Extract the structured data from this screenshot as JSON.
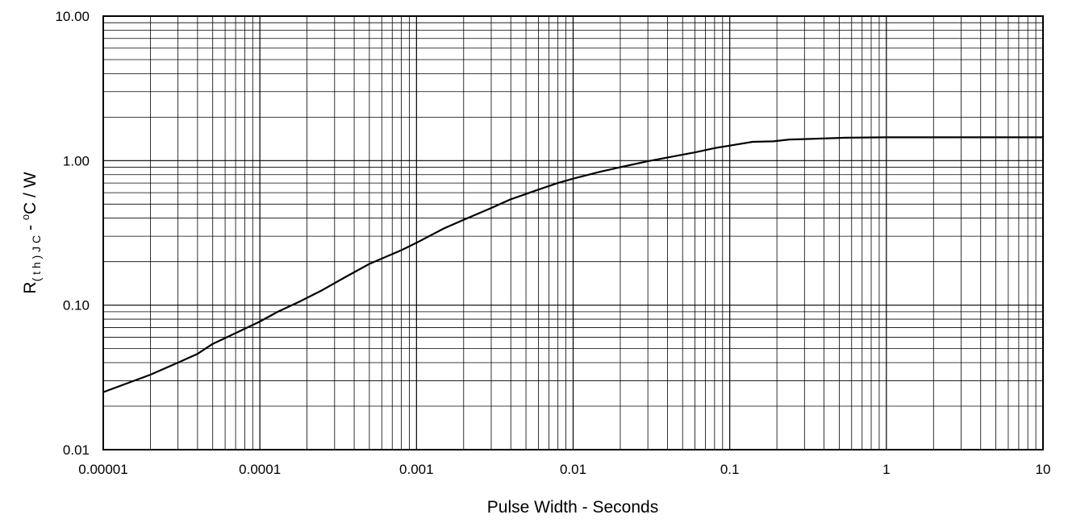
{
  "chart_data": {
    "type": "line",
    "xlabel": "Pulse Width - Seconds",
    "ylabel": {
      "main": "R",
      "sub": "( t h ) J C",
      "rest": " - ",
      "deg": "o",
      "unit": "C / W"
    },
    "x_scale": "log",
    "y_scale": "log",
    "xlim": [
      1e-05,
      10
    ],
    "ylim": [
      0.01,
      10
    ],
    "x_ticks": [
      {
        "value": 1e-05,
        "label": "0.00001"
      },
      {
        "value": 0.0001,
        "label": "0.0001"
      },
      {
        "value": 0.001,
        "label": "0.001"
      },
      {
        "value": 0.01,
        "label": "0.01"
      },
      {
        "value": 0.1,
        "label": "0.1"
      },
      {
        "value": 1,
        "label": "1"
      },
      {
        "value": 10,
        "label": "10"
      }
    ],
    "y_ticks": [
      {
        "value": 0.01,
        "label": "0.01"
      },
      {
        "value": 0.1,
        "label": "0.10"
      },
      {
        "value": 1,
        "label": "1.00"
      },
      {
        "value": 10,
        "label": "10.00"
      }
    ],
    "grid": true,
    "series": [
      {
        "color": "#000000",
        "x": [
          1e-05,
          2e-05,
          3e-05,
          4e-05,
          5e-05,
          7e-05,
          0.0001,
          0.00013,
          0.00018,
          0.00025,
          0.00035,
          0.0005,
          0.0006,
          0.0008,
          0.001,
          0.0015,
          0.002,
          0.003,
          0.004,
          0.006,
          0.008,
          0.01,
          0.015,
          0.02,
          0.03,
          0.05,
          0.06,
          0.08,
          0.1,
          0.14,
          0.19,
          0.24,
          0.3,
          0.55,
          1,
          10
        ],
        "y": [
          0.025,
          0.033,
          0.04,
          0.046,
          0.054,
          0.064,
          0.077,
          0.09,
          0.106,
          0.127,
          0.156,
          0.193,
          0.21,
          0.24,
          0.27,
          0.34,
          0.39,
          0.47,
          0.54,
          0.63,
          0.7,
          0.75,
          0.84,
          0.9,
          0.99,
          1.1,
          1.14,
          1.22,
          1.27,
          1.35,
          1.36,
          1.4,
          1.41,
          1.44,
          1.45,
          1.45
        ]
      }
    ]
  }
}
